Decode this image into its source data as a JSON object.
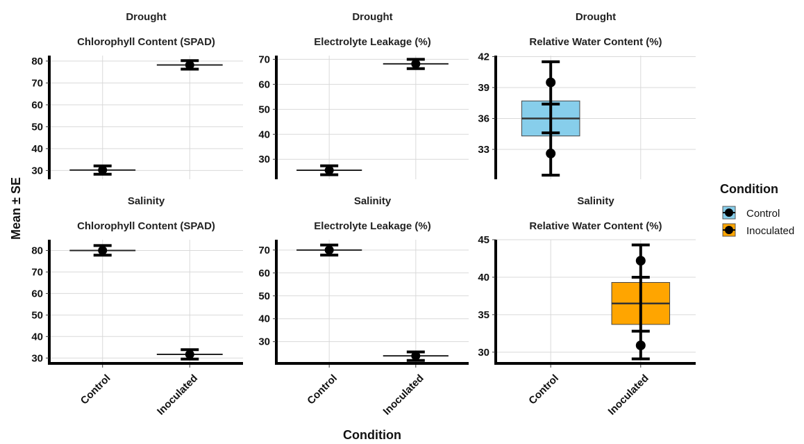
{
  "chart_data": {
    "type": "boxplot",
    "xlabel": "Condition",
    "ylabel": "Mean ± SE",
    "categories": [
      "Control",
      "Inoculated"
    ],
    "series_colors": {
      "Control": "#87ceeb",
      "Inoculated": "#ffa500"
    },
    "legend": {
      "title": "Condition",
      "position": "right",
      "items": [
        {
          "label": "Control",
          "color": "#87ceeb"
        },
        {
          "label": "Inoculated",
          "color": "#ffa500"
        }
      ]
    },
    "grid": true,
    "panels": [
      {
        "stress": "Drought",
        "title": "Chlorophyll Content (SPAD)",
        "ylim": [
          26,
          82.5
        ],
        "yticks": [
          30,
          40,
          50,
          60,
          70,
          80
        ],
        "ytick_labels": [
          "30",
          "40",
          "50",
          "60",
          "70",
          "80"
        ],
        "groups": [
          {
            "category": "Control",
            "mean": 30.2,
            "se_low": 28.3,
            "se_high": 32.1,
            "median": 30.2
          },
          {
            "category": "Inoculated",
            "mean": 78.2,
            "se_low": 76.3,
            "se_high": 80.2,
            "median": 78.2
          }
        ]
      },
      {
        "stress": "Drought",
        "title": "Electrolyte Leakage (%)",
        "ylim": [
          22,
          71.5
        ],
        "yticks": [
          30,
          40,
          50,
          60,
          70
        ],
        "ytick_labels": [
          "30",
          "40",
          "50",
          "60",
          "70"
        ],
        "groups": [
          {
            "category": "Control",
            "mean": 25.6,
            "se_low": 23.8,
            "se_high": 27.4,
            "median": 25.6
          },
          {
            "category": "Inoculated",
            "mean": 68.2,
            "se_low": 66.3,
            "se_high": 70.0,
            "median": 68.2
          }
        ]
      },
      {
        "stress": "Drought",
        "title": "Relative Water Content (%)",
        "ylim": [
          30.1,
          42.1
        ],
        "yticks": [
          33,
          36,
          39,
          42
        ],
        "ytick_labels": [
          "33",
          "36",
          "39",
          "42"
        ],
        "groups": [
          {
            "category": "Control",
            "points": [
              32.6,
              39.5
            ],
            "whisker_low": 30.5,
            "whisker_high": 41.5,
            "q1": 34.3,
            "median": 36.0,
            "q3": 37.7,
            "se_low": 34.6,
            "se_high": 37.4
          }
        ]
      },
      {
        "stress": "Salinity",
        "title": "Chlorophyll Content (SPAD)",
        "ylim": [
          27.5,
          85
        ],
        "yticks": [
          30,
          40,
          50,
          60,
          70,
          80
        ],
        "ytick_labels": [
          "30",
          "40",
          "50",
          "60",
          "70",
          "80"
        ],
        "groups": [
          {
            "category": "Control",
            "mean": 80.0,
            "se_low": 77.8,
            "se_high": 82.3,
            "median": 80.0
          },
          {
            "category": "Inoculated",
            "mean": 31.7,
            "se_low": 29.5,
            "se_high": 33.9,
            "median": 31.7
          }
        ]
      },
      {
        "stress": "Salinity",
        "title": "Electrolyte Leakage (%)",
        "ylim": [
          20.5,
          74.5
        ],
        "yticks": [
          30,
          40,
          50,
          60,
          70
        ],
        "ytick_labels": [
          "30",
          "40",
          "50",
          "60",
          "70"
        ],
        "groups": [
          {
            "category": "Control",
            "mean": 70.0,
            "se_low": 67.8,
            "se_high": 72.2,
            "median": 70.0
          },
          {
            "category": "Inoculated",
            "mean": 23.8,
            "se_low": 21.8,
            "se_high": 25.5,
            "median": 23.8
          }
        ]
      },
      {
        "stress": "Salinity",
        "title": "Relative Water Content (%)",
        "ylim": [
          28.5,
          45.0
        ],
        "yticks": [
          30,
          35,
          40,
          45
        ],
        "ytick_labels": [
          "30",
          "35",
          "40",
          "45"
        ],
        "groups": [
          {
            "category": "Inoculated",
            "points": [
              30.9,
              42.2
            ],
            "whisker_low": 29.1,
            "whisker_high": 44.3,
            "q1": 33.7,
            "median": 36.5,
            "q3": 39.3,
            "se_low": 32.8,
            "se_high": 40.0
          }
        ]
      }
    ]
  }
}
